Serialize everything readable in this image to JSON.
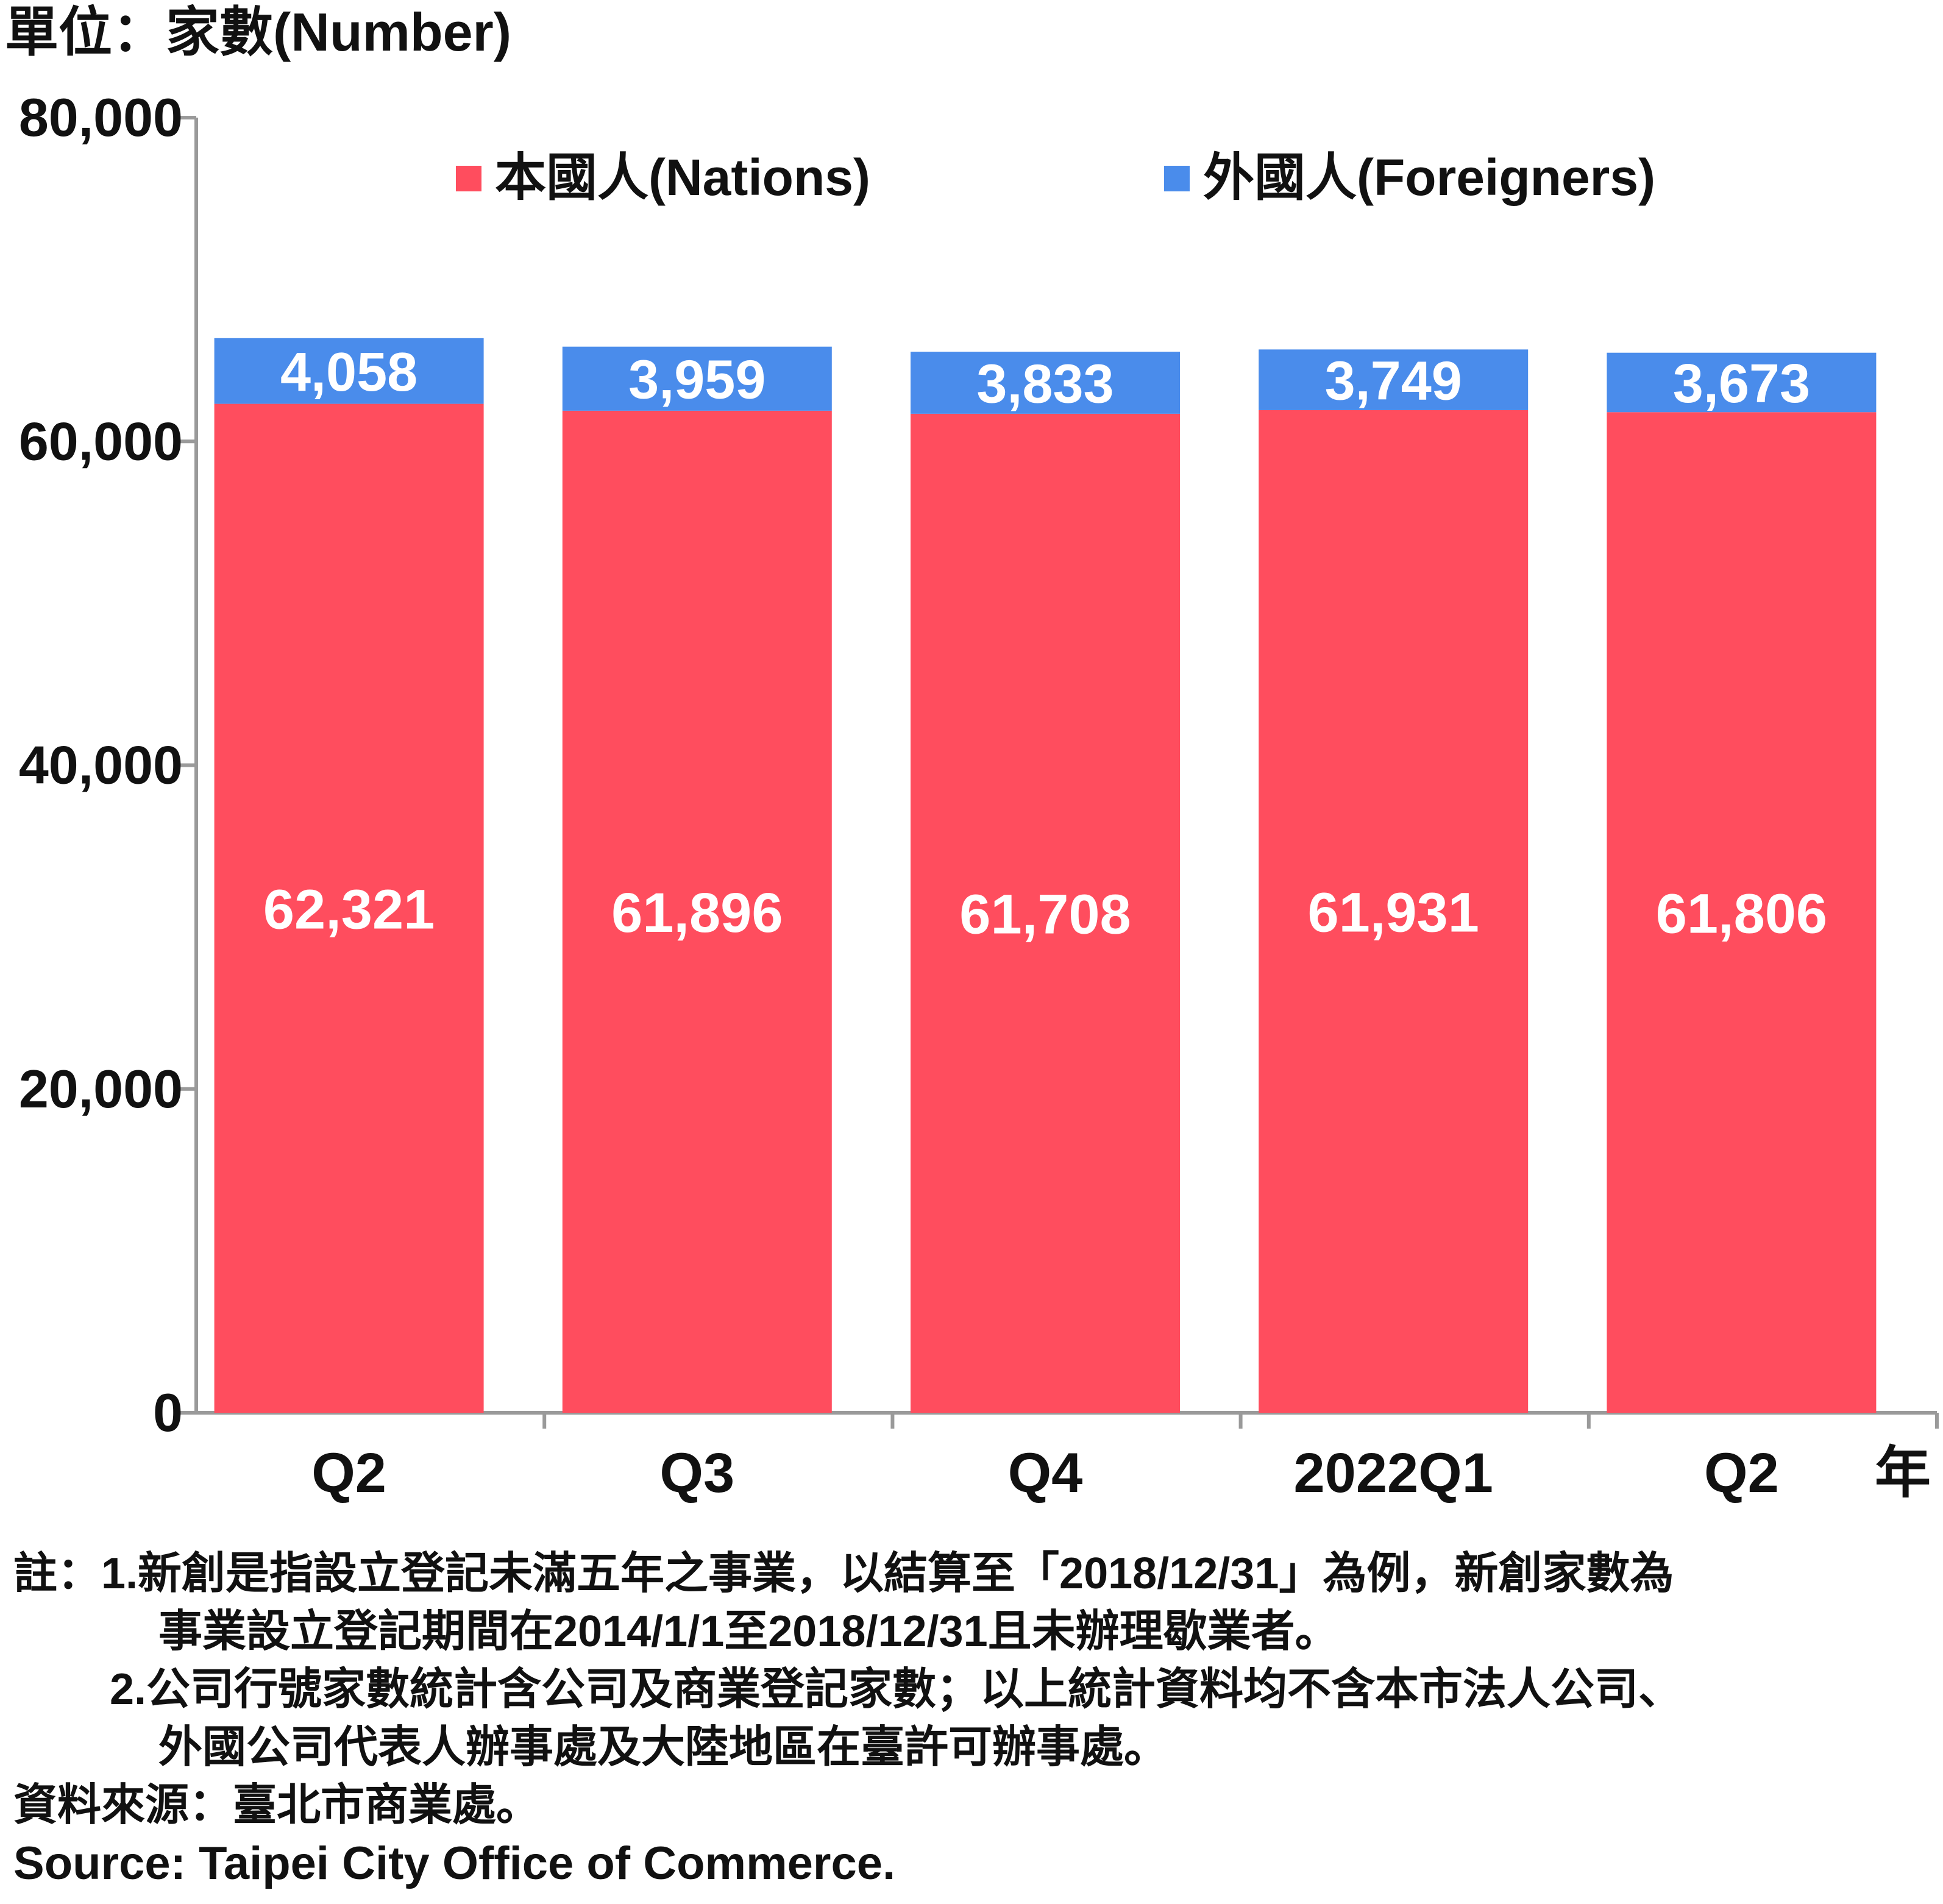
{
  "unit_label": "單位：家數(Number)",
  "colors": {
    "nations": "#FF4D5E",
    "foreigners": "#4A8CEB",
    "axis": "#9a9a9a"
  },
  "chart_data": {
    "type": "bar",
    "stacked": true,
    "categories": [
      "Q2",
      "Q3",
      "Q4",
      "2022Q1",
      "Q2"
    ],
    "x_axis_suffix": "年",
    "series": [
      {
        "name": "本國人(Nations)",
        "values": [
          62321,
          61896,
          61708,
          61931,
          61806
        ],
        "labels": [
          "62,321",
          "61,896",
          "61,708",
          "61,931",
          "61,806"
        ]
      },
      {
        "name": "外國人(Foreigners)",
        "values": [
          4058,
          3959,
          3833,
          3749,
          3673
        ],
        "labels": [
          "4,058",
          "3,959",
          "3,833",
          "3,749",
          "3,673"
        ]
      }
    ],
    "ylim": [
      0,
      80000
    ],
    "yticks": [
      0,
      20000,
      40000,
      60000,
      80000
    ],
    "ytick_labels": [
      "0",
      "20,000",
      "40,000",
      "60,000",
      "80,000"
    ],
    "legend_position": "top",
    "grid": false
  },
  "notes": {
    "line1": "註：1.新創是指設立登記未滿五年之事業，以結算至「2018/12/31」為例，新創家數為",
    "line2": "事業設立登記期間在2014/1/1至2018/12/31且未辦理歇業者。",
    "line3": "2.公司行號家數統計含公司及商業登記家數；以上統計資料均不含本市法人公司、",
    "line4": "外國公司代表人辦事處及大陸地區在臺許可辦事處。",
    "source_zh": "資料來源：臺北市商業處。",
    "source_en": "Source: Taipei City Office of Commerce."
  }
}
